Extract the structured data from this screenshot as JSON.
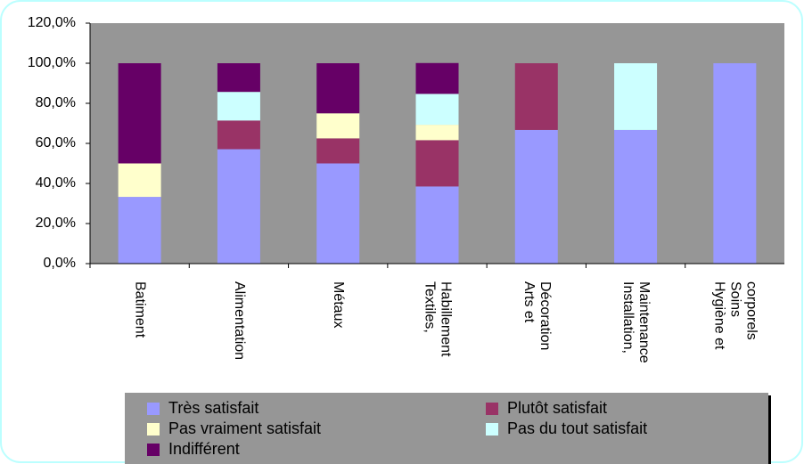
{
  "chart_data": {
    "type": "stacked_bar",
    "categories": [
      "Batiment",
      "Alimentation",
      "Métaux",
      "Textiles,\nHabillement",
      "Arts et\nDécoration",
      "Installation,\nMaintenance",
      "Hygiène et\nSoins\ncorporels"
    ],
    "series": [
      {
        "name": "Très satisfait",
        "color": "#9999ff",
        "values": [
          33.3,
          57.1,
          50,
          38.5,
          66.7,
          66.7,
          100
        ]
      },
      {
        "name": "Plutôt satisfait",
        "color": "#993366",
        "values": [
          0,
          14.3,
          12.5,
          23.1,
          33.3,
          0,
          0
        ]
      },
      {
        "name": "Pas vraiment satisfait",
        "color": "#ffffcc",
        "values": [
          16.7,
          0,
          12.5,
          7.7,
          0,
          0,
          0
        ]
      },
      {
        "name": "Pas du tout satisfait",
        "color": "#ccffff",
        "values": [
          0,
          14.3,
          0,
          15.4,
          0,
          33.3,
          0
        ]
      },
      {
        "name": "Indifférent",
        "color": "#660066",
        "values": [
          50,
          14.3,
          25,
          15.4,
          0,
          0,
          0
        ]
      }
    ],
    "ylim": [
      0,
      120
    ],
    "yticks": [
      {
        "value": 0,
        "label": "0,0%"
      },
      {
        "value": 20,
        "label": "20,0%"
      },
      {
        "value": 40,
        "label": "40,0%"
      },
      {
        "value": 60,
        "label": "60,0%"
      },
      {
        "value": 80,
        "label": "80,0%"
      },
      {
        "value": 100,
        "label": "100,0%"
      },
      {
        "value": 120,
        "label": "120,0%"
      }
    ],
    "grid": false,
    "plot_color": "#969696",
    "legend": "bottom"
  }
}
